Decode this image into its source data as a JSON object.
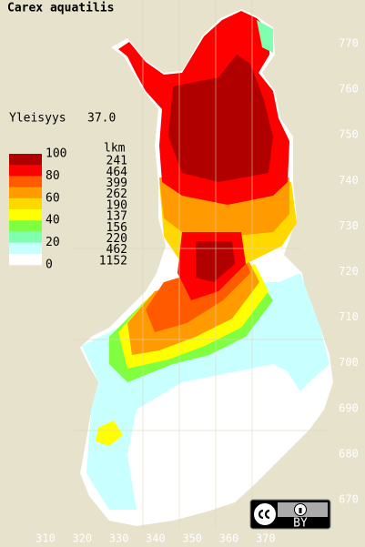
{
  "title": "Carex aquatilis",
  "frequency_label": "Yleisyys",
  "frequency_value": "37.0",
  "legend": {
    "count_header": "lkm",
    "scale_labels": [
      "100",
      "80",
      "60",
      "40",
      "20",
      "0"
    ],
    "classes": [
      {
        "color": "#b00000",
        "count": "241"
      },
      {
        "color": "#ff0000",
        "count": "464"
      },
      {
        "color": "#ff5a00",
        "count": "399"
      },
      {
        "color": "#ff9a00",
        "count": "262"
      },
      {
        "color": "#ffd800",
        "count": "190"
      },
      {
        "color": "#ffff00",
        "count": "137"
      },
      {
        "color": "#80ff40",
        "count": "156"
      },
      {
        "color": "#80ffb0",
        "count": "220"
      },
      {
        "color": "#c8ffff",
        "count": "462"
      },
      {
        "color": "#ffffff",
        "count": "1152"
      }
    ]
  },
  "x_labels": [
    "310",
    "320",
    "330",
    "340",
    "350",
    "360",
    "370"
  ],
  "y_labels": [
    "770",
    "760",
    "750",
    "740",
    "730",
    "720",
    "710",
    "700",
    "690",
    "680",
    "670"
  ],
  "license": "BY"
}
